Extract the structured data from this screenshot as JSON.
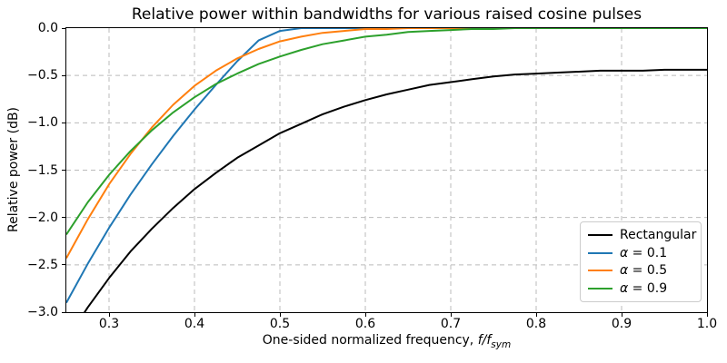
{
  "chart": {
    "title": "Relative power within bandwidths for various raised cosine pulses",
    "xlabel_prefix": "One-sided normalized frequency, ",
    "xlabel_math": "f/f",
    "xlabel_sub": "sym",
    "ylabel": "Relative power (dB)",
    "colors": {
      "rectangular": "#000000",
      "alpha_0_1": "#1f77b4",
      "alpha_0_5": "#ff7f0e",
      "alpha_0_9": "#2ca02c",
      "grid": "#bbbbbb",
      "legend_border": "#cccccc",
      "background": "#ffffff"
    }
  },
  "chart_data": {
    "type": "line",
    "title": "Relative power within bandwidths for various raised cosine pulses",
    "xlabel": "One-sided normalized frequency, f/f_sym",
    "ylabel": "Relative power (dB)",
    "xlim": [
      0.25,
      1.0
    ],
    "ylim": [
      -3.0,
      0.0
    ],
    "xticks": [
      0.3,
      0.4,
      0.5,
      0.6,
      0.7,
      0.8,
      0.9,
      1.0
    ],
    "yticks": [
      0.0,
      -0.5,
      -1.0,
      -1.5,
      -2.0,
      -2.5,
      -3.0
    ],
    "grid": true,
    "grid_style": "dashed",
    "legend_position": "lower right",
    "x": [
      0.25,
      0.275,
      0.3,
      0.325,
      0.35,
      0.375,
      0.4,
      0.425,
      0.45,
      0.475,
      0.5,
      0.525,
      0.55,
      0.575,
      0.6,
      0.625,
      0.65,
      0.675,
      0.7,
      0.725,
      0.75,
      0.775,
      0.8,
      0.825,
      0.85,
      0.875,
      0.9,
      0.925,
      0.95,
      0.975,
      1.0
    ],
    "series": [
      {
        "name": "Rectangular",
        "color": "#000000",
        "values": [
          -3.3,
          -2.95,
          -2.64,
          -2.36,
          -2.12,
          -1.9,
          -1.7,
          -1.53,
          -1.37,
          -1.24,
          -1.11,
          -1.01,
          -0.91,
          -0.83,
          -0.76,
          -0.7,
          -0.65,
          -0.6,
          -0.57,
          -0.54,
          -0.51,
          -0.49,
          -0.48,
          -0.47,
          -0.46,
          -0.45,
          -0.45,
          -0.45,
          -0.44,
          -0.44,
          -0.44
        ]
      },
      {
        "name": "α = 0.1",
        "color": "#1f77b4",
        "values": [
          -2.9,
          -2.49,
          -2.11,
          -1.76,
          -1.44,
          -1.14,
          -0.86,
          -0.6,
          -0.35,
          -0.13,
          -0.03,
          0,
          0,
          0,
          0,
          0,
          0,
          0,
          0,
          0,
          0,
          0,
          0,
          0,
          0,
          0,
          0,
          0,
          0,
          0,
          0
        ]
      },
      {
        "name": "α = 0.5",
        "color": "#ff7f0e",
        "values": [
          -2.43,
          -2.02,
          -1.65,
          -1.33,
          -1.05,
          -0.81,
          -0.61,
          -0.45,
          -0.32,
          -0.22,
          -0.14,
          -0.09,
          -0.05,
          -0.03,
          -0.01,
          -0.01,
          0,
          0,
          0,
          0,
          0,
          0,
          0,
          0,
          0,
          0,
          0,
          0,
          0,
          0,
          0
        ]
      },
      {
        "name": "α = 0.9",
        "color": "#2ca02c",
        "values": [
          -2.18,
          -1.84,
          -1.55,
          -1.3,
          -1.08,
          -0.89,
          -0.73,
          -0.59,
          -0.48,
          -0.38,
          -0.3,
          -0.23,
          -0.17,
          -0.13,
          -0.09,
          -0.07,
          -0.04,
          -0.03,
          -0.02,
          -0.01,
          -0.01,
          0,
          0,
          0,
          0,
          0,
          0,
          0,
          0,
          0,
          0
        ]
      }
    ]
  }
}
